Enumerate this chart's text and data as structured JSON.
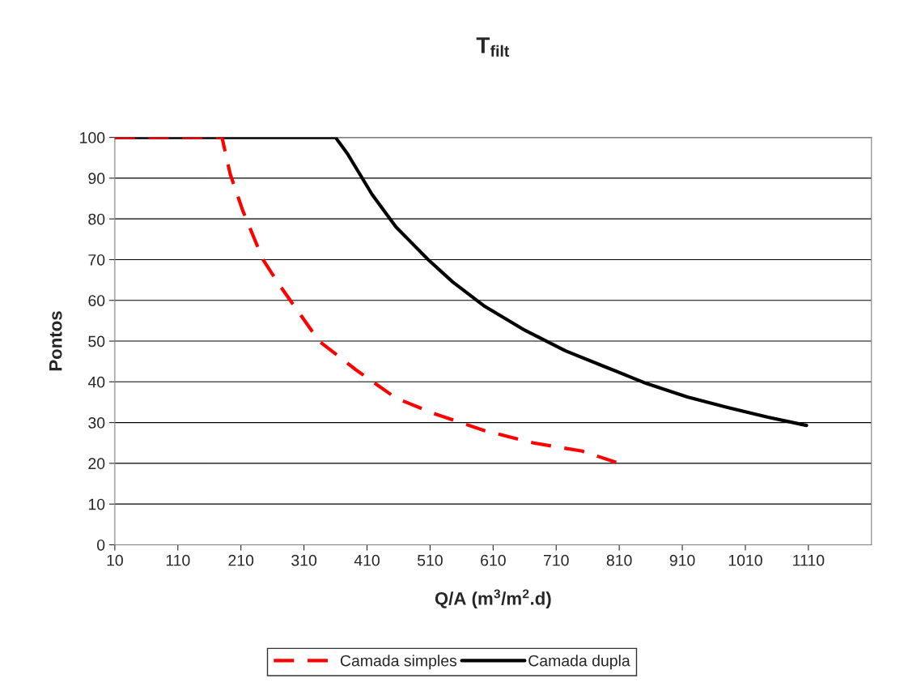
{
  "chart_data": {
    "type": "line",
    "title": "T$_{filt}$",
    "xlabel": "Q/A (m$^{3}$/m$^{2}$.d)",
    "ylabel": "Pontos",
    "xlim": [
      10,
      1210
    ],
    "xticks": [
      10,
      110,
      210,
      310,
      410,
      510,
      610,
      710,
      810,
      910,
      1010,
      1110
    ],
    "ylim": [
      0,
      100
    ],
    "yticks": [
      0,
      10,
      20,
      30,
      40,
      50,
      60,
      70,
      80,
      90,
      100
    ],
    "grid": "y",
    "legend": "bottom",
    "series": [
      {
        "name": "Camada simples",
        "color": "#ff0000",
        "line_style": "dashed",
        "x": [
          10,
          180,
          193,
          213,
          245,
          270,
          302,
          334,
          392,
          456,
          520,
          597,
          674,
          751,
          810
        ],
        "values": [
          100,
          100,
          91,
          82,
          70,
          64,
          57,
          50,
          43,
          36,
          32,
          28,
          25,
          23,
          20
        ]
      },
      {
        "name": "Camada dupla",
        "color": "#000000",
        "line_style": "solid",
        "x": [
          10,
          360,
          379,
          418,
          456,
          507,
          546,
          597,
          661,
          725,
          789,
          853,
          918,
          982,
          1046,
          1107
        ],
        "values": [
          100,
          100,
          96,
          86,
          78,
          70,
          64.5,
          58.5,
          52.6,
          47.6,
          43.6,
          39.6,
          36.3,
          33.7,
          31.3,
          29.3
        ]
      }
    ]
  }
}
